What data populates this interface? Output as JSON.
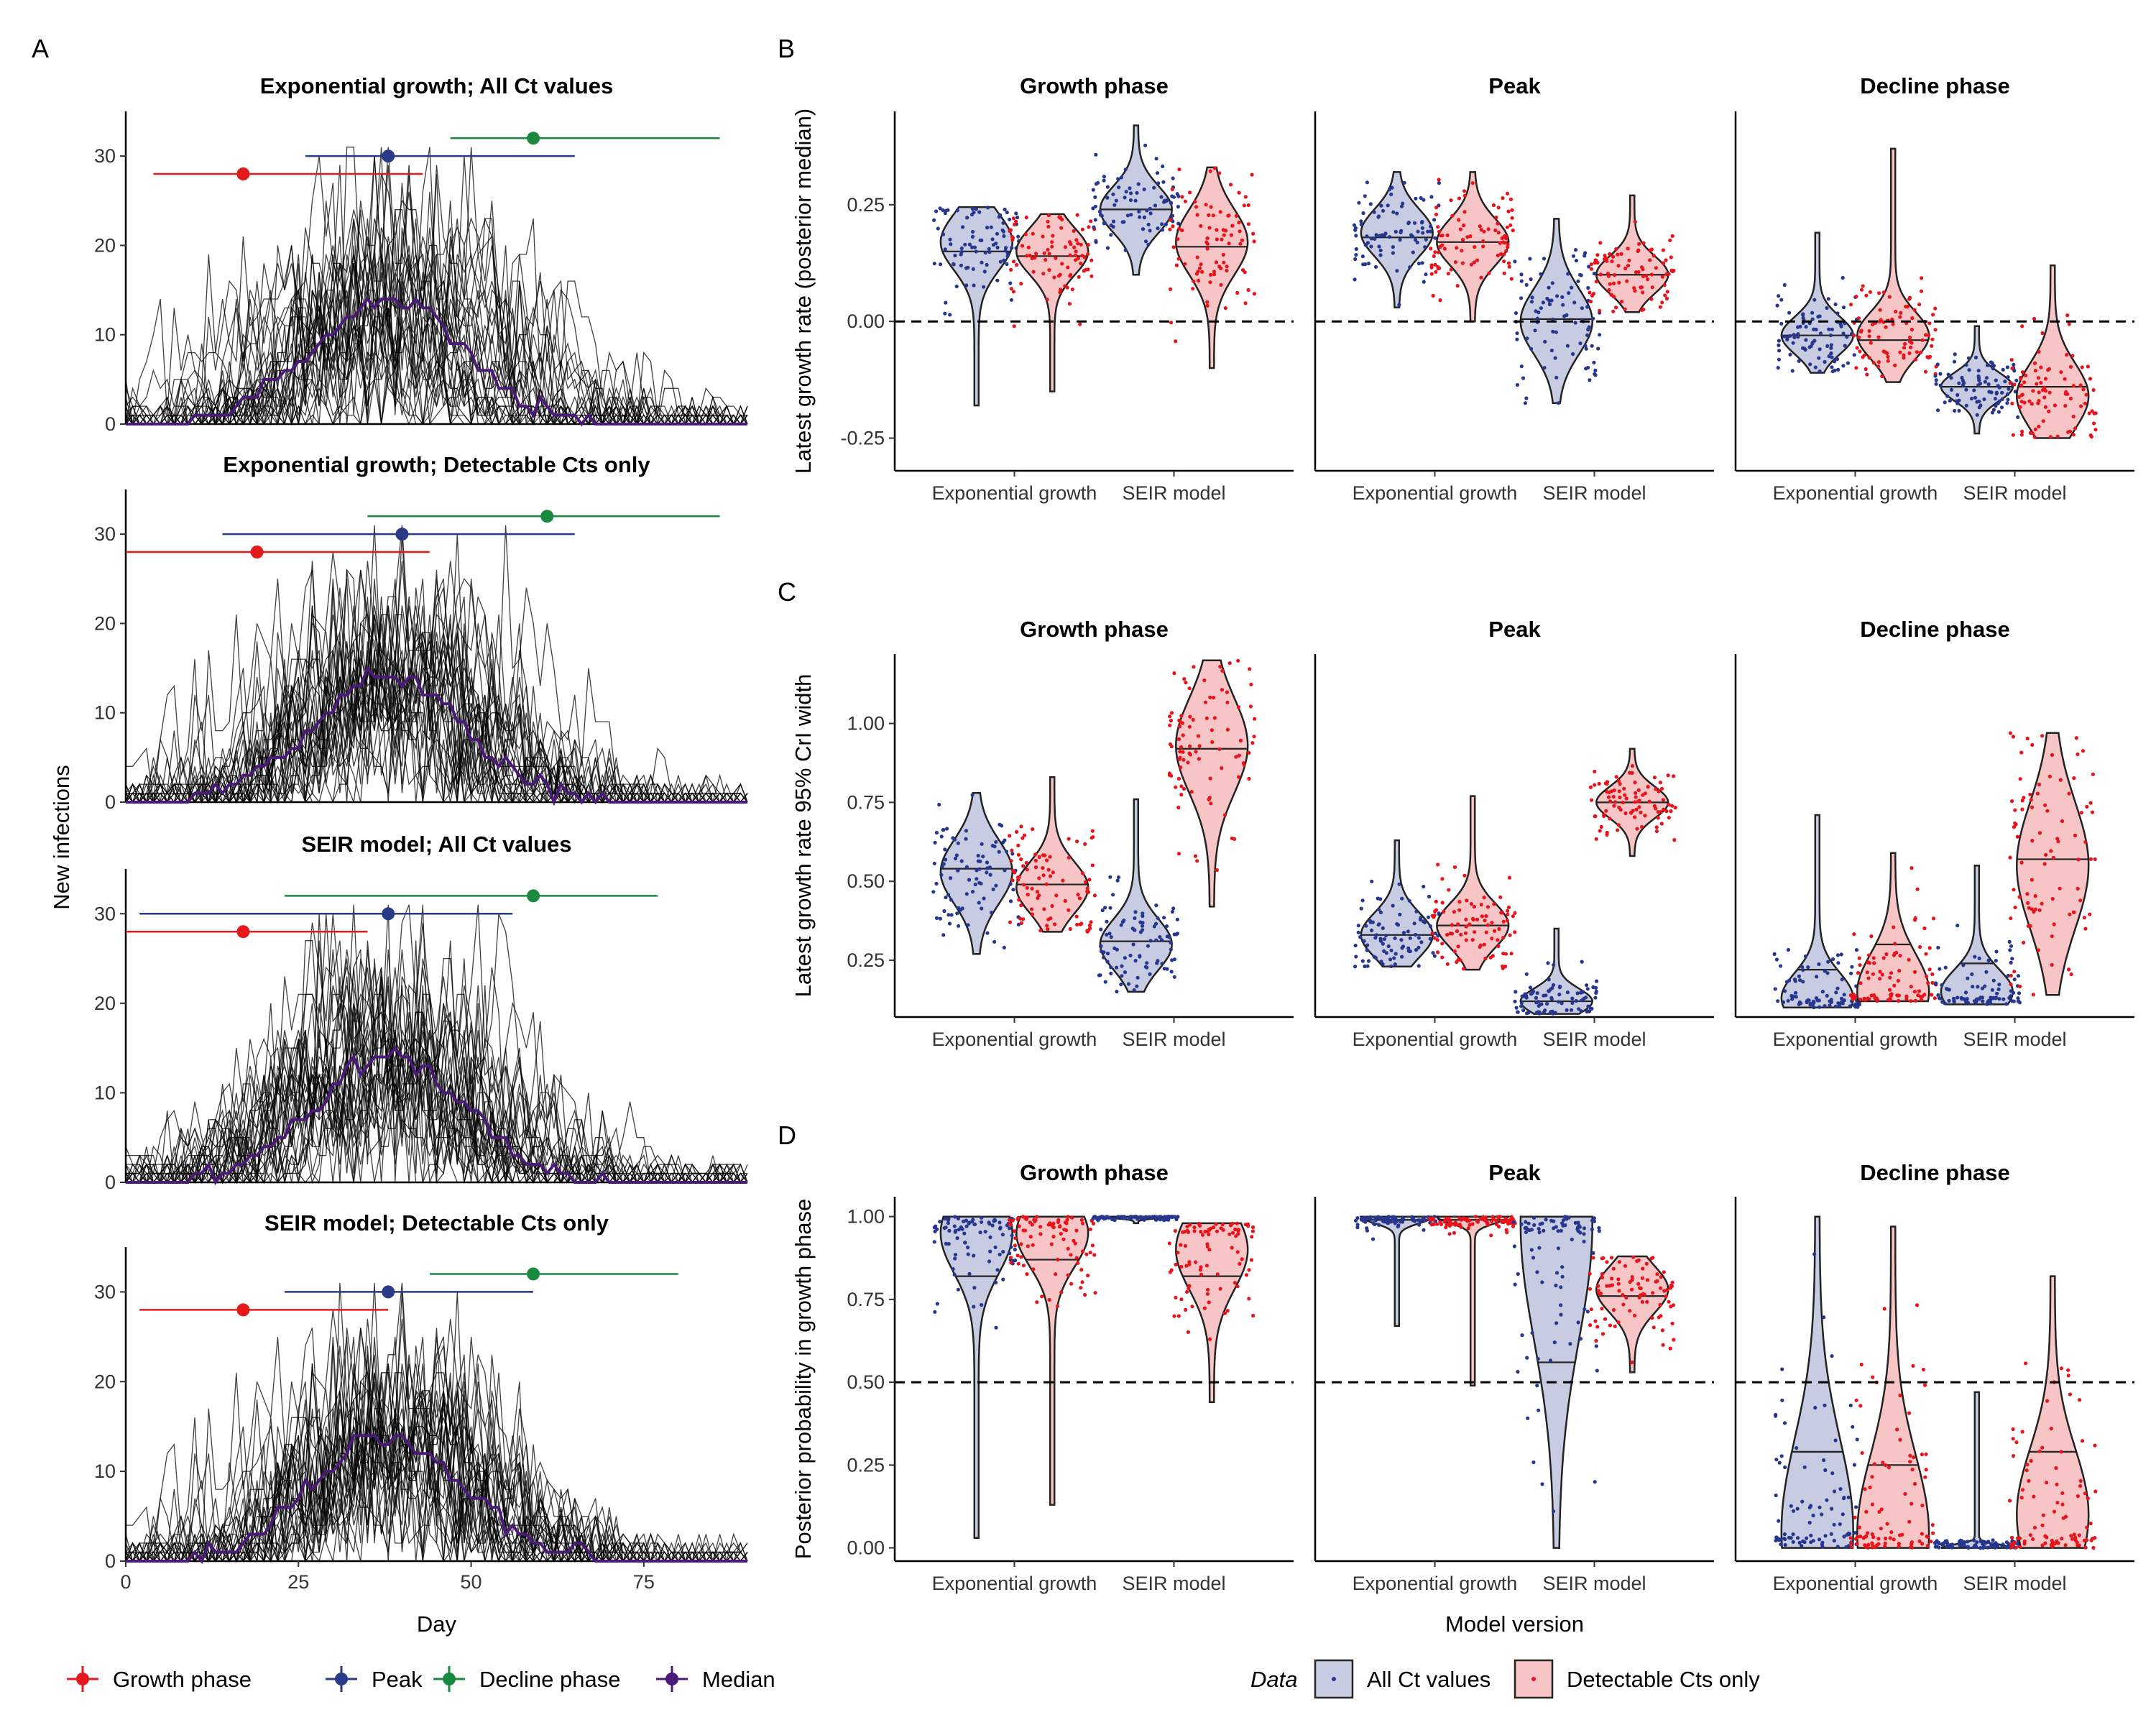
{
  "panel_labels": [
    "A",
    "B",
    "C",
    "D"
  ],
  "legend_left": [
    {
      "label": "Growth phase",
      "color": "#E41A1C"
    },
    {
      "label": "Peak",
      "color": "#2B3A87"
    },
    {
      "label": "Decline phase",
      "color": "#1A8A3F"
    },
    {
      "label": "Median",
      "color": "#4B1978"
    }
  ],
  "legend_right": {
    "title": "Data",
    "items": [
      {
        "label": "All Ct values",
        "fill": "#C7CCE3",
        "point": "#27378E"
      },
      {
        "label": "Detectable Cts only",
        "fill": "#F7C5C5",
        "point": "#E8141C"
      }
    ]
  },
  "chart_data": [
    {
      "id": "A",
      "type": "line",
      "xlabel": "Day",
      "ylabel": "New infections",
      "xlim": [
        0,
        90
      ],
      "ylim": [
        0,
        35
      ],
      "x_ticks": [
        0,
        25,
        50,
        75
      ],
      "y_ticks": [
        0,
        10,
        20,
        30
      ],
      "facets": [
        {
          "title": "Exponential growth; All Ct values",
          "intervals": [
            {
              "phase": "Growth phase",
              "point": 17,
              "lo": 4,
              "hi": 43,
              "y": 28
            },
            {
              "phase": "Peak",
              "point": 38,
              "lo": 26,
              "hi": 65,
              "y": 30
            },
            {
              "phase": "Decline phase",
              "point": 59,
              "lo": 47,
              "hi": 86,
              "y": 32
            }
          ]
        },
        {
          "title": "Exponential growth; Detectable Cts only",
          "intervals": [
            {
              "phase": "Growth phase",
              "point": 19,
              "lo": 0,
              "hi": 44,
              "y": 28
            },
            {
              "phase": "Peak",
              "point": 40,
              "lo": 14,
              "hi": 65,
              "y": 30
            },
            {
              "phase": "Decline phase",
              "point": 61,
              "lo": 35,
              "hi": 86,
              "y": 32
            }
          ]
        },
        {
          "title": "SEIR model; All Ct values",
          "intervals": [
            {
              "phase": "Growth phase",
              "point": 17,
              "lo": 0,
              "hi": 35,
              "y": 28
            },
            {
              "phase": "Peak",
              "point": 38,
              "lo": 2,
              "hi": 56,
              "y": 30
            },
            {
              "phase": "Decline phase",
              "point": 59,
              "lo": 23,
              "hi": 77,
              "y": 32
            }
          ]
        },
        {
          "title": "SEIR model; Detectable Cts only",
          "intervals": [
            {
              "phase": "Growth phase",
              "point": 17,
              "lo": 2,
              "hi": 38,
              "y": 28
            },
            {
              "phase": "Peak",
              "point": 38,
              "lo": 23,
              "hi": 59,
              "y": 30
            },
            {
              "phase": "Decline phase",
              "point": 59,
              "lo": 44,
              "hi": 80,
              "y": 32
            }
          ]
        }
      ],
      "series": [
        {
          "name": "Median",
          "peak_day": 38,
          "peak_value": 14
        }
      ]
    },
    {
      "id": "B",
      "type": "violin",
      "ylabel": "Latest growth rate (posterior median)",
      "ylim": [
        -0.32,
        0.45
      ],
      "y_ticks": [
        "-0.25",
        "0.00",
        "0.25"
      ],
      "hline": 0,
      "categories": [
        "Exponential growth",
        "SEIR model"
      ],
      "facets": [
        {
          "title": "Growth phase",
          "groups": [
            {
              "model": "Exponential growth",
              "data": "All Ct values",
              "min": -0.18,
              "max": 0.245,
              "median": 0.15,
              "mode": 0.17,
              "spread": 0.06
            },
            {
              "model": "Exponential growth",
              "data": "Detectable Cts only",
              "min": -0.15,
              "max": 0.23,
              "median": 0.14,
              "mode": 0.15,
              "spread": 0.05
            },
            {
              "model": "SEIR model",
              "data": "All Ct values",
              "min": 0.1,
              "max": 0.42,
              "median": 0.24,
              "mode": 0.24,
              "spread": 0.05
            },
            {
              "model": "SEIR model",
              "data": "Detectable Cts only",
              "min": -0.1,
              "max": 0.33,
              "median": 0.16,
              "mode": 0.17,
              "spread": 0.07
            }
          ]
        },
        {
          "title": "Peak",
          "groups": [
            {
              "model": "Exponential growth",
              "data": "All Ct values",
              "min": 0.03,
              "max": 0.32,
              "median": 0.18,
              "mode": 0.19,
              "spread": 0.05
            },
            {
              "model": "Exponential growth",
              "data": "Detectable Cts only",
              "min": 0,
              "max": 0.32,
              "median": 0.17,
              "mode": 0.17,
              "spread": 0.05
            },
            {
              "model": "SEIR model",
              "data": "All Ct values",
              "min": -0.175,
              "max": 0.22,
              "median": 0.005,
              "mode": 0.0,
              "spread": 0.07
            },
            {
              "model": "SEIR model",
              "data": "Detectable Cts only",
              "min": 0.02,
              "max": 0.27,
              "median": 0.1,
              "mode": 0.1,
              "spread": 0.04
            }
          ]
        },
        {
          "title": "Decline phase",
          "groups": [
            {
              "model": "Exponential growth",
              "data": "All Ct values",
              "min": -0.11,
              "max": 0.19,
              "median": -0.03,
              "mode": -0.03,
              "spread": 0.04
            },
            {
              "model": "Exponential growth",
              "data": "Detectable Cts only",
              "min": -0.13,
              "max": 0.37,
              "median": -0.04,
              "mode": -0.03,
              "spread": 0.05
            },
            {
              "model": "SEIR model",
              "data": "All Ct values",
              "min": -0.24,
              "max": -0.01,
              "median": -0.14,
              "mode": -0.14,
              "spread": 0.03
            },
            {
              "model": "SEIR model",
              "data": "Detectable Cts only",
              "min": -0.25,
              "max": 0.12,
              "median": -0.14,
              "mode": -0.16,
              "spread": 0.07
            }
          ]
        }
      ]
    },
    {
      "id": "C",
      "type": "violin",
      "ylabel": "Latest growth rate 95% CrI width",
      "ylim": [
        0.07,
        1.22
      ],
      "y_ticks": [
        "0.25",
        "0.50",
        "0.75",
        "1.00"
      ],
      "categories": [
        "Exponential growth",
        "SEIR model"
      ],
      "facets": [
        {
          "title": "Growth phase",
          "groups": [
            {
              "model": "Exponential growth",
              "data": "All Ct values",
              "min": 0.27,
              "max": 0.78,
              "median": 0.54,
              "mode": 0.53,
              "spread": 0.1
            },
            {
              "model": "Exponential growth",
              "data": "Detectable Cts only",
              "min": 0.34,
              "max": 0.83,
              "median": 0.49,
              "mode": 0.48,
              "spread": 0.08
            },
            {
              "model": "SEIR model",
              "data": "All Ct values",
              "min": 0.15,
              "max": 0.76,
              "median": 0.31,
              "mode": 0.3,
              "spread": 0.08
            },
            {
              "model": "SEIR model",
              "data": "Detectable Cts only",
              "min": 0.42,
              "max": 1.2,
              "median": 0.92,
              "mode": 0.93,
              "spread": 0.15
            }
          ]
        },
        {
          "title": "Peak",
          "groups": [
            {
              "model": "Exponential growth",
              "data": "All Ct values",
              "min": 0.23,
              "max": 0.63,
              "median": 0.33,
              "mode": 0.33,
              "spread": 0.07
            },
            {
              "model": "Exponential growth",
              "data": "Detectable Cts only",
              "min": 0.22,
              "max": 0.77,
              "median": 0.36,
              "mode": 0.36,
              "spread": 0.07
            },
            {
              "model": "SEIR model",
              "data": "All Ct values",
              "min": 0.08,
              "max": 0.35,
              "median": 0.12,
              "mode": 0.12,
              "spread": 0.04
            },
            {
              "model": "SEIR model",
              "data": "Detectable Cts only",
              "min": 0.58,
              "max": 0.92,
              "median": 0.75,
              "mode": 0.75,
              "spread": 0.05
            }
          ]
        },
        {
          "title": "Decline phase",
          "groups": [
            {
              "model": "Exponential growth",
              "data": "All Ct values",
              "min": 0.1,
              "max": 0.71,
              "median": 0.22,
              "mode": 0.13,
              "spread": 0.08
            },
            {
              "model": "Exponential growth",
              "data": "Detectable Cts only",
              "min": 0.12,
              "max": 0.59,
              "median": 0.3,
              "mode": 0.15,
              "spread": 0.12
            },
            {
              "model": "SEIR model",
              "data": "All Ct values",
              "min": 0.11,
              "max": 0.55,
              "median": 0.24,
              "mode": 0.15,
              "spread": 0.07
            },
            {
              "model": "SEIR model",
              "data": "Detectable Cts only",
              "min": 0.14,
              "max": 0.97,
              "median": 0.57,
              "mode": 0.55,
              "spread": 0.2
            }
          ]
        }
      ]
    },
    {
      "id": "D",
      "type": "violin",
      "xlabel": "Model version",
      "ylabel": "Posterior probability in growth phase",
      "ylim": [
        -0.04,
        1.06
      ],
      "y_ticks": [
        "0.00",
        "0.25",
        "0.50",
        "0.75",
        "1.00"
      ],
      "hline": 0.5,
      "categories": [
        "Exponential growth",
        "SEIR model"
      ],
      "facets": [
        {
          "title": "Growth phase",
          "groups": [
            {
              "model": "Exponential growth",
              "data": "All Ct values",
              "min": 0.03,
              "max": 1.0,
              "median": 0.82,
              "mode": 0.95,
              "spread": 0.12
            },
            {
              "model": "Exponential growth",
              "data": "Detectable Cts only",
              "min": 0.13,
              "max": 1.0,
              "median": 0.87,
              "mode": 0.95,
              "spread": 0.1
            },
            {
              "model": "SEIR model",
              "data": "All Ct values",
              "min": 0.98,
              "max": 1.0,
              "median": 1.0,
              "mode": 1.0,
              "spread": 0.005
            },
            {
              "model": "SEIR model",
              "data": "Detectable Cts only",
              "min": 0.44,
              "max": 0.98,
              "median": 0.82,
              "mode": 0.9,
              "spread": 0.12
            }
          ]
        },
        {
          "title": "Peak",
          "groups": [
            {
              "model": "Exponential growth",
              "data": "All Ct values",
              "min": 0.67,
              "max": 1.0,
              "median": 0.99,
              "mode": 1.0,
              "spread": 0.02
            },
            {
              "model": "Exponential growth",
              "data": "Detectable Cts only",
              "min": 0.49,
              "max": 1.0,
              "median": 0.99,
              "mode": 1.0,
              "spread": 0.02
            },
            {
              "model": "SEIR model",
              "data": "All Ct values",
              "min": 0.0,
              "max": 1.0,
              "median": 0.56,
              "mode": 0.98,
              "spread": 0.35
            },
            {
              "model": "SEIR model",
              "data": "Detectable Cts only",
              "min": 0.53,
              "max": 0.88,
              "median": 0.76,
              "mode": 0.78,
              "spread": 0.07
            }
          ]
        },
        {
          "title": "Decline phase",
          "groups": [
            {
              "model": "Exponential growth",
              "data": "All Ct values",
              "min": 0.0,
              "max": 1.0,
              "median": 0.29,
              "mode": 0.05,
              "spread": 0.28
            },
            {
              "model": "Exponential growth",
              "data": "Detectable Cts only",
              "min": 0.0,
              "max": 0.97,
              "median": 0.25,
              "mode": 0.04,
              "spread": 0.24
            },
            {
              "model": "SEIR model",
              "data": "All Ct values",
              "min": 0.0,
              "max": 0.47,
              "median": 0.0,
              "mode": 0.0,
              "spread": 0.01
            },
            {
              "model": "SEIR model",
              "data": "Detectable Cts only",
              "min": 0.0,
              "max": 0.82,
              "median": 0.29,
              "mode": 0.1,
              "spread": 0.2
            }
          ]
        }
      ]
    }
  ]
}
